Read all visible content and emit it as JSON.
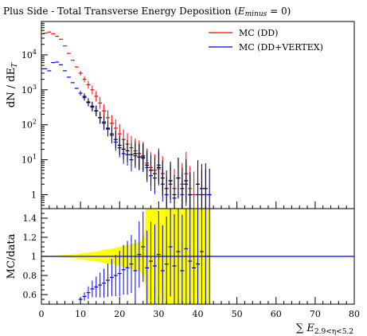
{
  "colors": {
    "dd": "#ff0000",
    "vertex": "#0000ff",
    "data": "#000000",
    "band": "#ffff00",
    "ratio_line": "#0000ff"
  },
  "chart_data": [
    {
      "type": "scatter",
      "panel": "main",
      "title": "Plus Side - Total Transverse Energy Deposition (E_minus = 0)",
      "title_parts": {
        "prefix": "Plus Side - Total Transverse Energy Deposition (",
        "var_main": "E",
        "var_sub": "minus",
        "suffix": " = 0)"
      },
      "ylabel_parts": {
        "a": "dN / dE",
        "sub": "T"
      },
      "yscale": "log",
      "ylim": [
        0.4,
        90000
      ],
      "xlim": [
        0,
        80
      ],
      "y_ticks": [
        {
          "v": 1,
          "label": "1",
          "exp": ""
        },
        {
          "v": 10,
          "label": "10",
          "exp": "1"
        },
        {
          "v": 100,
          "label": "10",
          "exp": "2"
        },
        {
          "v": 1000,
          "label": "10",
          "exp": "3"
        },
        {
          "v": 10000,
          "label": "10",
          "exp": "4"
        }
      ],
      "legend_position": "top-right",
      "series": [
        {
          "name": "MC (DD)",
          "key": "dd",
          "points": [
            [
              1,
              42000
            ],
            [
              2,
              45000
            ],
            [
              3,
              40000
            ],
            [
              4,
              34000
            ],
            [
              5,
              28000
            ],
            [
              6,
              18000
            ],
            [
              7,
              11000
            ],
            [
              8,
              7000
            ],
            [
              9,
              4500
            ],
            [
              10,
              3000
            ],
            [
              11,
              2000
            ],
            [
              12,
              1400
            ],
            [
              13,
              1000
            ],
            [
              14,
              650
            ],
            [
              15,
              420
            ],
            [
              16,
              250
            ],
            [
              17,
              160
            ],
            [
              18,
              110
            ],
            [
              19,
              80
            ],
            [
              20,
              55
            ],
            [
              21,
              38
            ],
            [
              22,
              28
            ],
            [
              23,
              22
            ],
            [
              24,
              18
            ],
            [
              25,
              15
            ],
            [
              26,
              13
            ],
            [
              27,
              8
            ],
            [
              28,
              6
            ],
            [
              29,
              5
            ],
            [
              30,
              5.5
            ],
            [
              31,
              4
            ],
            [
              33,
              2.5
            ],
            [
              34,
              1.5
            ],
            [
              35,
              3
            ],
            [
              36,
              2
            ],
            [
              37,
              4
            ],
            [
              38,
              1.5
            ],
            [
              39,
              1
            ],
            [
              41,
              1.5
            ],
            [
              43,
              1
            ]
          ]
        },
        {
          "name": "MC (DD+VERTEX)",
          "key": "vertex",
          "points": [
            [
              1,
              4000
            ],
            [
              2,
              3500
            ],
            [
              3,
              6000
            ],
            [
              4,
              6200
            ],
            [
              5,
              5200
            ],
            [
              6,
              3500
            ],
            [
              7,
              2300
            ],
            [
              8,
              1600
            ],
            [
              9,
              1100
            ],
            [
              10,
              800
            ],
            [
              11,
              600
            ],
            [
              12,
              430
            ],
            [
              13,
              320
            ],
            [
              14,
              250
            ],
            [
              15,
              160
            ],
            [
              16,
              110
            ],
            [
              17,
              75
            ],
            [
              18,
              50
            ],
            [
              19,
              32
            ],
            [
              20,
              22
            ],
            [
              21,
              15
            ],
            [
              22,
              14
            ],
            [
              23,
              10
            ],
            [
              24,
              13
            ],
            [
              25,
              12
            ],
            [
              26,
              11
            ],
            [
              27,
              6
            ],
            [
              28,
              3.5
            ],
            [
              29,
              3
            ],
            [
              30,
              7
            ],
            [
              31,
              2
            ],
            [
              32,
              1
            ],
            [
              33,
              2
            ],
            [
              34,
              0.8
            ],
            [
              35,
              3
            ],
            [
              36,
              1
            ],
            [
              37,
              2
            ],
            [
              38,
              1
            ],
            [
              40,
              1
            ],
            [
              41,
              1.5
            ],
            [
              42,
              1
            ],
            [
              43,
              1
            ]
          ]
        },
        {
          "name": "",
          "key": "data",
          "points": [
            [
              11,
              650
            ],
            [
              12,
              450
            ],
            [
              13,
              340
            ],
            [
              14,
              250
            ],
            [
              15,
              160
            ],
            [
              16,
              120
            ],
            [
              17,
              80
            ],
            [
              18,
              55
            ],
            [
              19,
              38
            ],
            [
              20,
              26
            ],
            [
              21,
              20
            ],
            [
              22,
              18
            ],
            [
              23,
              14
            ],
            [
              24,
              15
            ],
            [
              25,
              12
            ],
            [
              26,
              12
            ],
            [
              27,
              7
            ],
            [
              28,
              5
            ],
            [
              29,
              4
            ],
            [
              30,
              6
            ],
            [
              31,
              3
            ],
            [
              32,
              1.5
            ],
            [
              33,
              2.5
            ],
            [
              34,
              1
            ],
            [
              35,
              3
            ],
            [
              36,
              1.5
            ],
            [
              37,
              2.5
            ],
            [
              38,
              1
            ],
            [
              40,
              2
            ],
            [
              41,
              1
            ],
            [
              42,
              1.5
            ]
          ]
        }
      ]
    },
    {
      "type": "scatter",
      "panel": "ratio",
      "ylabel": "MC/data",
      "xlabel_parts": {
        "sum": "∑",
        "E": "E",
        "sub": "2.9<η<5.2"
      },
      "ylim": [
        0.5,
        1.5
      ],
      "xlim": [
        0,
        80
      ],
      "y_ticks": [
        0.6,
        0.8,
        1,
        1.2,
        1.4
      ],
      "x_ticks": [
        0,
        10,
        20,
        30,
        40,
        50,
        60,
        70,
        80
      ],
      "reference_line": 1,
      "band_halfwidth": [
        [
          0,
          0.005
        ],
        [
          4,
          0.01
        ],
        [
          8,
          0.02
        ],
        [
          10,
          0.03
        ],
        [
          12,
          0.04
        ],
        [
          14,
          0.05
        ],
        [
          16,
          0.07
        ],
        [
          18,
          0.08
        ],
        [
          20,
          0.1
        ],
        [
          22,
          0.12
        ],
        [
          24,
          0.14
        ],
        [
          26,
          0.17
        ],
        [
          27,
          0.4
        ],
        [
          28,
          0.5
        ],
        [
          29,
          0.5
        ],
        [
          30,
          0.3
        ],
        [
          31,
          0.5
        ],
        [
          32,
          0.5
        ],
        [
          34,
          0.5
        ],
        [
          36,
          0.5
        ],
        [
          38,
          0.5
        ],
        [
          40,
          0.5
        ],
        [
          42,
          0.5
        ],
        [
          43,
          0.5
        ]
      ],
      "series": [
        {
          "name": "MC (DD+VERTEX)",
          "key": "vertex",
          "points": [
            [
              10,
              0.55
            ],
            [
              11,
              0.58
            ],
            [
              12,
              0.62
            ],
            [
              13,
              0.66
            ],
            [
              14,
              0.68
            ],
            [
              15,
              0.7
            ],
            [
              16,
              0.72
            ],
            [
              17,
              0.75
            ],
            [
              18,
              0.78
            ],
            [
              19,
              0.8
            ],
            [
              20,
              0.82
            ],
            [
              21,
              0.86
            ],
            [
              22,
              0.88
            ],
            [
              23,
              0.92
            ],
            [
              24,
              0.85
            ],
            [
              25,
              1.02
            ],
            [
              26,
              1.1
            ],
            [
              27,
              0.88
            ],
            [
              28,
              0.95
            ],
            [
              29,
              0.9
            ],
            [
              30,
              1.02
            ],
            [
              31,
              0.85
            ],
            [
              32,
              0.92
            ],
            [
              33,
              1.1
            ],
            [
              34,
              0.9
            ],
            [
              35,
              1.05
            ],
            [
              36,
              0.85
            ],
            [
              37,
              1.08
            ],
            [
              38,
              0.95
            ],
            [
              39,
              0.88
            ],
            [
              40,
              0.92
            ],
            [
              41,
              1.05
            ],
            [
              42,
              1.0
            ],
            [
              43,
              1.0
            ]
          ]
        }
      ]
    }
  ]
}
